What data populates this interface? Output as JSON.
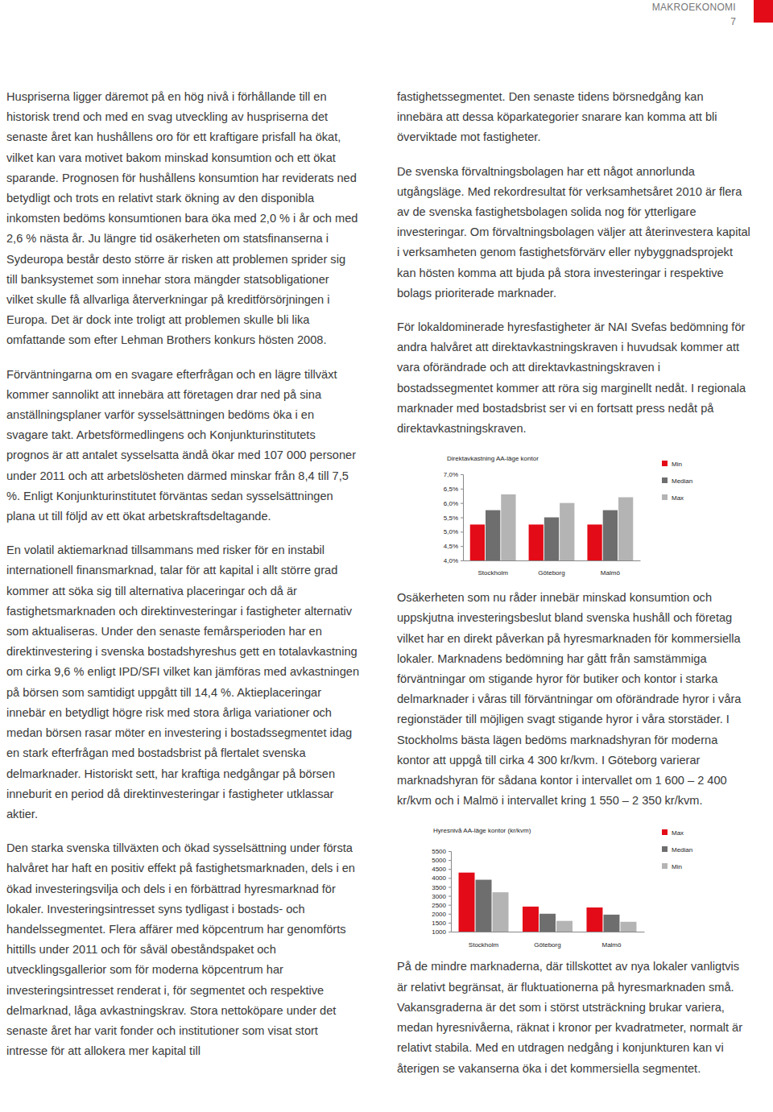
{
  "header": {
    "section": "MAKROEKONOMI",
    "page": "7"
  },
  "left_column": [
    "Huspriserna ligger däremot på en hög nivå i förhållande till en historisk trend och med en svag utveckling av huspriserna det senaste året kan hushållens oro för ett kraftigare prisfall ha ökat, vilket kan vara motivet bakom minskad konsumtion och ett ökat sparande. Prognosen för hushållens konsumtion har reviderats ned betydligt och trots en relativt stark ökning av den disponibla inkomsten bedöms konsumtionen bara öka med 2,0 % i år och med 2,6 % nästa år. Ju längre tid osäkerheten om statsfinanserna i Sydeuropa består desto större är risken att problemen sprider sig till banksystemet som innehar stora mängder statsobligationer vilket skulle få allvarliga återverkningar på kreditförsörjningen i Europa. Det är dock inte troligt att problemen skulle bli lika omfattande som efter Lehman Brothers konkurs hösten 2008.",
    "Förväntningarna om en svagare efterfrågan och en lägre tillväxt kommer sannolikt att innebära att företagen drar ned på sina anställningsplaner varför sysselsättningen bedöms öka i en svagare takt. Arbetsförmedlingens och Konjunkturinstitutets prognos är att antalet sysselsatta ändå ökar med 107 000 personer under 2011 och att arbetslösheten därmed minskar från 8,4 till 7,5 %. Enligt Konjunkturinstitutet förväntas sedan sysselsättningen plana ut till följd av ett ökat arbetskraftsdeltagande.",
    "En volatil aktiemarknad tillsammans med risker för en instabil internationell finansmarknad, talar för att kapital i allt större grad kommer att söka sig till alternativa placeringar och då är fastighetsmarknaden och direktinvesteringar i fastigheter alternativ som aktualiseras. Under den senaste femårsperioden har en direktinvestering i svenska bostadshyreshus gett en totalavkastning om cirka 9,6 % enligt IPD/SFI vilket kan jämföras med avkastningen på börsen som samtidigt uppgått till 14,4 %. Aktieplaceringar innebär en betydligt högre risk med stora årliga variationer och medan börsen rasar möter en investering i bostadssegmentet idag en stark efterfrågan med bostadsbrist på flertalet svenska delmarknader. Historiskt sett, har kraftiga nedgångar på börsen inneburit en period då direktinvesteringar i fastigheter utklassar aktier.",
    "Den starka svenska tillväxten och ökad sysselsättning under första halvåret har haft en positiv effekt på fastighetsmarknaden, dels i en ökad investeringsvilja och dels i en förbättrad hyresmarknad för lokaler. Investeringsintresset syns tydligast i bostads- och handelssegmentet. Flera affärer med köpcentrum har genomförts hittills under 2011 och för såväl obeståndspaket och utvecklingsgallerior som för moderna köpcentrum har investeringsintresset renderat i, för segmentet och respektive delmarknad, låga avkastningskrav. Stora nettoköpare under det senaste året har varit fonder och institutioner som visat stort intresse för att allokera mer kapital till"
  ],
  "right_column": [
    "fastighetssegmentet. Den senaste tidens börsnedgång kan innebära att dessa köparkategorier snarare kan komma att bli överviktade mot fastigheter.",
    "De svenska förvaltningsbolagen har ett något annorlunda utgångsläge. Med rekordresultat för verksamhetsåret 2010 är flera av de svenska fastighetsbolagen solida nog för ytterligare investeringar. Om förvaltningsbolagen väljer att återinvestera kapital i verksamheten genom fastighetsförvärv eller nybyggnadsprojekt kan hösten komma att bjuda på stora investeringar i respektive bolags prioriterade marknader.",
    "För lokaldominerade hyresfastigheter är NAI Svefas bedömning för andra halvåret att direktavkastningskraven i huvudsak kommer att vara oförändrade och att direktavkastningskraven i bostadssegmentet kommer att röra sig marginellt nedåt. I regionala marknader med bostadsbrist ser vi en fortsatt press nedåt på direktavkastningskraven.",
    "Osäkerheten som nu råder innebär minskad konsumtion och uppskjutna investeringsbeslut bland svenska hushåll och företag vilket har en direkt påverkan på hyresmarknaden för kommersiella lokaler. Marknadens bedömning har gått från samstämmiga förväntningar om stigande hyror för butiker och kontor i starka delmarknader i våras till förväntningar om oförändrade hyror i våra regionstäder till möjligen svagt stigande hyror i våra storstäder. I Stockholms bästa lägen bedöms marknadshyran för moderna kontor att uppgå till cirka 4 300 kr/kvm. I Göteborg varierar marknadshyran för sådana kontor i intervallet om 1 600 – 2 400 kr/kvm och i Malmö i intervallet kring 1 550 – 2 350 kr/kvm.",
    "På de mindre marknaderna, där tillskottet av nya lokaler vanligtvis är relativt begränsat, är fluktuationerna på hyresmarknaden små. Vakansgraderna är det som i störst utsträckning brukar variera, medan hyresnivåerna, räknat i kronor per kvadratmeter, normalt är relativt stabila. Med en utdragen nedgång i konjunkturen kan vi återigen se vakanserna öka i det kommersiella segmentet."
  ],
  "chart_data": [
    {
      "type": "bar",
      "title": "Direktavkastning AA-läge kontor",
      "categories": [
        "Stockholm",
        "Göteborg",
        "Malmö"
      ],
      "series": [
        {
          "name": "Min",
          "color": "#e30b17",
          "values": [
            5.25,
            5.25,
            5.25
          ]
        },
        {
          "name": "Median",
          "color": "#6e6e6e",
          "values": [
            5.75,
            5.5,
            5.75
          ]
        },
        {
          "name": "Max",
          "color": "#b4b4b4",
          "values": [
            6.3,
            6.0,
            6.2
          ]
        }
      ],
      "ylim": [
        4.0,
        7.0
      ],
      "yticks": [
        {
          "value": 4.0,
          "label": "4,0%"
        },
        {
          "value": 4.5,
          "label": "4,5%"
        },
        {
          "value": 5.0,
          "label": "5,0%"
        },
        {
          "value": 5.5,
          "label": "5,5%"
        },
        {
          "value": 6.0,
          "label": "6,0%"
        },
        {
          "value": 6.5,
          "label": "6,5%"
        },
        {
          "value": 7.0,
          "label": "7,0%"
        }
      ],
      "grid": false,
      "legend": "top-right"
    },
    {
      "type": "bar",
      "title": "Hyresnivå AA-läge kontor (kr/kvm)",
      "categories": [
        "Stockholm",
        "Göteborg",
        "Malmö"
      ],
      "series": [
        {
          "name": "Max",
          "color": "#e30b17",
          "values": [
            4300,
            2400,
            2350
          ]
        },
        {
          "name": "Median",
          "color": "#6e6e6e",
          "values": [
            3900,
            2000,
            1950
          ]
        },
        {
          "name": "Min",
          "color": "#b4b4b4",
          "values": [
            3200,
            1600,
            1550
          ]
        }
      ],
      "ylim": [
        1000,
        5500
      ],
      "yticks": [
        1000,
        1500,
        2000,
        2500,
        3000,
        3500,
        4000,
        4500,
        5000,
        5500
      ],
      "grid": false,
      "legend": "top-right"
    }
  ]
}
